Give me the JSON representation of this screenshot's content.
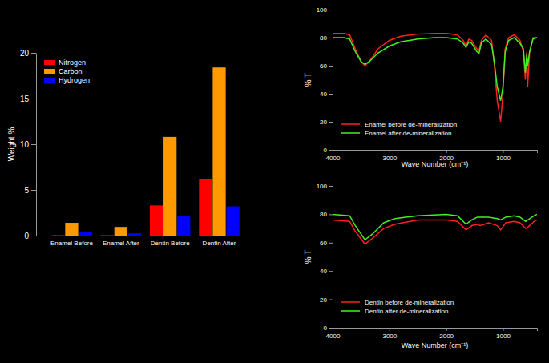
{
  "chart_data": [
    {
      "type": "bar",
      "categories": [
        "Enamel Before",
        "Enamel After",
        "Dentin Before",
        "Dentin After"
      ],
      "series": [
        {
          "name": "Nitrogen",
          "color": "#ff0000",
          "values": [
            0.05,
            0.05,
            3.3,
            6.2
          ]
        },
        {
          "name": "Carbon",
          "color": "#ff9900",
          "values": [
            1.4,
            0.95,
            10.8,
            18.4
          ]
        },
        {
          "name": "Hydrogen",
          "color": "#0000ff",
          "values": [
            0.35,
            0.25,
            2.1,
            3.2
          ]
        }
      ],
      "ylim": [
        0,
        20
      ],
      "yticks": [
        0,
        5,
        10,
        15,
        20
      ],
      "y_label": "Weight %",
      "legend": "upper-left"
    },
    {
      "type": "line",
      "x": [
        4000,
        3800,
        3700,
        3600,
        3500,
        3430,
        3350,
        3200,
        3000,
        2800,
        2500,
        2200,
        2000,
        1800,
        1700,
        1650,
        1600,
        1550,
        1460,
        1420,
        1380,
        1300,
        1200,
        1150,
        1100,
        1040,
        1000,
        960,
        900,
        800,
        700,
        640,
        605,
        580,
        565,
        530,
        470,
        400
      ],
      "series": [
        {
          "name": "Enamel before de-mineralization",
          "color": "#ff2020",
          "values": [
            83,
            83,
            82,
            72,
            63,
            60,
            63,
            72,
            78,
            81,
            82.5,
            83,
            83,
            82,
            78,
            74,
            79,
            78,
            72,
            71,
            78,
            82,
            78,
            60,
            35,
            20,
            40,
            72,
            80,
            82,
            78,
            70,
            50,
            70,
            45,
            70,
            80,
            80
          ]
        },
        {
          "name": "Enamel after de-mineralization",
          "color": "#44ee22",
          "values": [
            80,
            80,
            79,
            70,
            63,
            61,
            63,
            69,
            74,
            77,
            79,
            80,
            80,
            79,
            76,
            73,
            77,
            76,
            70,
            69,
            76,
            79,
            75,
            62,
            45,
            35,
            45,
            70,
            78,
            80,
            76,
            72,
            55,
            68,
            60,
            70,
            79,
            80
          ]
        }
      ],
      "xlim": [
        4000,
        400
      ],
      "xticks": [
        4000,
        3000,
        2000,
        1000
      ],
      "ylim": [
        0,
        100
      ],
      "yticks": [
        0,
        20,
        40,
        60,
        80,
        100
      ],
      "x_label": "Wave Number (cm⁻¹)",
      "y_label": "% T",
      "legend": "lower-left"
    },
    {
      "type": "line",
      "x": [
        4000,
        3700,
        3600,
        3430,
        3300,
        3100,
        2900,
        2500,
        2000,
        1800,
        1650,
        1550,
        1450,
        1400,
        1250,
        1100,
        1040,
        950,
        800,
        700,
        600,
        560,
        450,
        400
      ],
      "series": [
        {
          "name": "Dentin before de-mineralization",
          "color": "#ff2020",
          "values": [
            76,
            75,
            68,
            59,
            63,
            70,
            73,
            76,
            76,
            75,
            69,
            72,
            73,
            72,
            74,
            72,
            69,
            74,
            75,
            74,
            70,
            71,
            75,
            76
          ]
        },
        {
          "name": "Dentin after de-mineralization",
          "color": "#44ee22",
          "values": [
            80,
            79,
            72,
            62,
            66,
            74,
            77,
            79,
            80,
            79,
            73,
            76,
            78,
            78,
            78,
            77,
            76,
            78,
            79,
            78,
            75,
            76,
            79,
            80
          ]
        }
      ],
      "xlim": [
        4000,
        400
      ],
      "xticks": [
        4000,
        3000,
        2000,
        1000
      ],
      "ylim": [
        0,
        100
      ],
      "yticks": [
        0,
        20,
        40,
        60,
        80,
        100
      ],
      "x_label": "Wave Number (cm⁻¹)",
      "y_label": "% T",
      "legend": "lower-left"
    }
  ]
}
